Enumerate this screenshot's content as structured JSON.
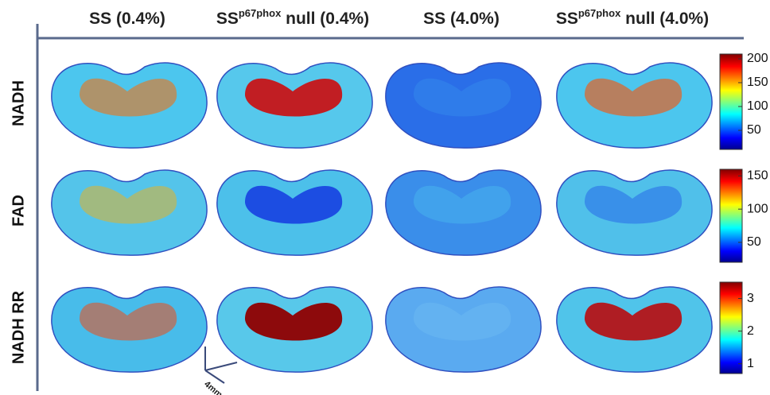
{
  "columns": [
    {
      "base": "SS",
      "sup": null,
      "rest": " (0.4%)"
    },
    {
      "base": "SS",
      "sup": "p67phox",
      "rest": " null (0.4%)"
    },
    {
      "base": "SS",
      "sup": null,
      "rest": " (4.0%)"
    },
    {
      "base": "SS",
      "sup": "p67phox",
      "rest": " null (4.0%)"
    }
  ],
  "rows": [
    "NADH",
    "FAD",
    "NADH RR"
  ],
  "colorbars": [
    {
      "range": [
        10,
        210
      ],
      "ticks": [
        50,
        100,
        150,
        200
      ]
    },
    {
      "range": [
        20,
        160
      ],
      "ticks": [
        50,
        100,
        150
      ]
    },
    {
      "range": [
        0.7,
        3.5
      ],
      "ticks": [
        1,
        2,
        3
      ]
    }
  ],
  "scale_label": "4mm"
}
